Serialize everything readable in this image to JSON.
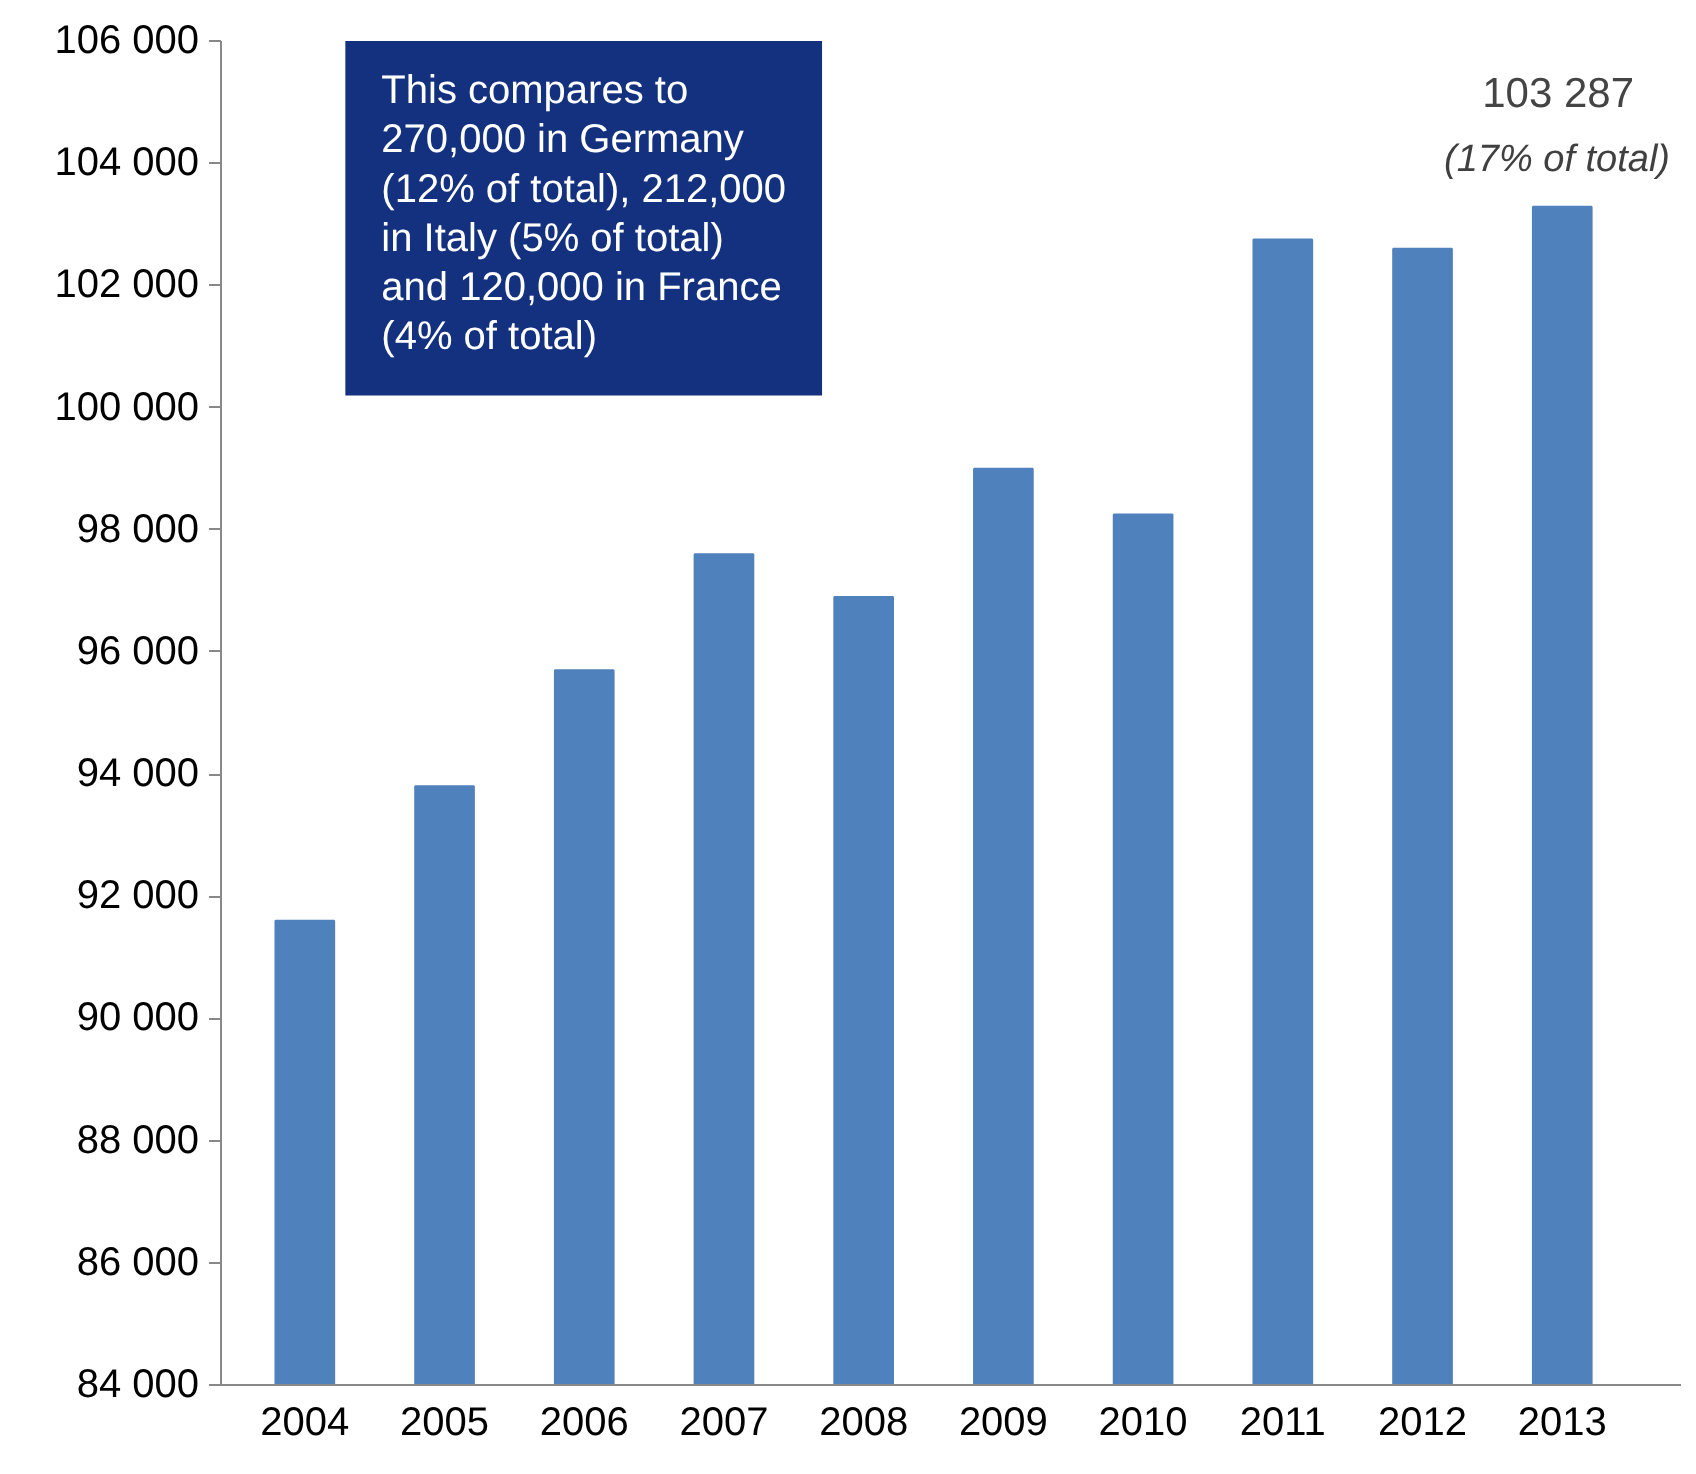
{
  "chart_data": {
    "type": "bar",
    "categories": [
      "2004",
      "2005",
      "2006",
      "2007",
      "2008",
      "2009",
      "2010",
      "2011",
      "2012",
      "2013"
    ],
    "values": [
      91600,
      93800,
      95700,
      97600,
      96900,
      99000,
      98250,
      102750,
      102600,
      103287
    ],
    "color": "#4f81bd",
    "ylim": [
      84000,
      106000
    ],
    "yticks": [
      {
        "value": 84000,
        "label": "84 000"
      },
      {
        "value": 86000,
        "label": "86 000"
      },
      {
        "value": 88000,
        "label": "88 000"
      },
      {
        "value": 90000,
        "label": "90 000"
      },
      {
        "value": 92000,
        "label": "92 000"
      },
      {
        "value": 94000,
        "label": "94 000"
      },
      {
        "value": 96000,
        "label": "96 000"
      },
      {
        "value": 98000,
        "label": "98 000"
      },
      {
        "value": 100000,
        "label": "100 000"
      },
      {
        "value": 102000,
        "label": "102 000"
      },
      {
        "value": 104000,
        "label": "104 000"
      },
      {
        "value": 106000,
        "label": "106 000"
      }
    ],
    "grid": false,
    "annotations": [
      "This compares to\n270,000 in Germany\n(12% of total), 212,000\nin Italy (5% of total)\nand 120,000 in France\n(4% of total)",
      {
        "text": "103 287",
        "x": "2013",
        "y": 103287
      },
      {
        "text": "(17% of total)",
        "x": "2013",
        "y": 103287
      }
    ]
  }
}
